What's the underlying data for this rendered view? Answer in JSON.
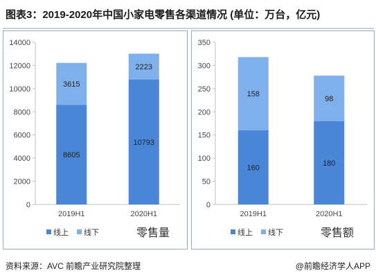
{
  "title": "图表3：2019-2020年中国小家电零售各渠道情况 (单位：万台，亿元)",
  "colors": {
    "online": "#4a86d6",
    "offline": "#7fb0ec"
  },
  "chart_data": [
    {
      "type": "bar",
      "stacked": true,
      "title": "零售量",
      "categories": [
        "2019H1",
        "2020H1"
      ],
      "series": [
        {
          "name": "线上",
          "values": [
            8605,
            10793
          ]
        },
        {
          "name": "线下",
          "values": [
            3615,
            2223
          ]
        }
      ],
      "ylim": [
        0,
        14000
      ],
      "yticks": [
        0,
        2000,
        4000,
        6000,
        8000,
        10000,
        12000,
        14000
      ],
      "legend": "bottom",
      "grid": false
    },
    {
      "type": "bar",
      "stacked": true,
      "title": "零售额",
      "categories": [
        "2019H1",
        "2020H1"
      ],
      "series": [
        {
          "name": "线上",
          "values": [
            160,
            180
          ]
        },
        {
          "name": "线下",
          "values": [
            158,
            98
          ]
        }
      ],
      "ylim": [
        0,
        350
      ],
      "yticks": [
        0,
        50,
        100,
        150,
        200,
        250,
        300,
        350
      ],
      "legend": "bottom",
      "grid": false
    }
  ],
  "footer": {
    "source": "资料来源：AVC 前瞻产业研究院整理",
    "brand": "@前瞻经济学人APP"
  }
}
